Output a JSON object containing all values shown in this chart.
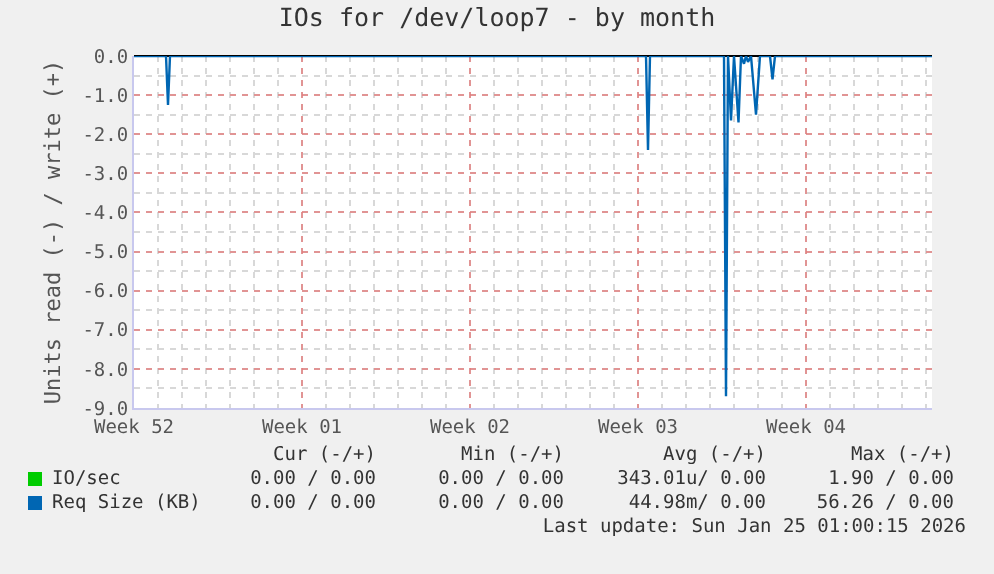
{
  "chart_data": {
    "type": "line",
    "title": "IOs for /dev/loop7 - by month",
    "ylabel": "Units read (-) / write (+)",
    "x": [
      "2025-12-22T00:00",
      "2025-12-23T08:00",
      "2025-12-23T10:00",
      "2025-12-23T12:00",
      "2026-01-12T08:00",
      "2026-01-12T10:00",
      "2026-01-12T12:00",
      "2026-01-15T14:00",
      "2026-01-15T16:00",
      "2026-01-15T18:00",
      "2026-01-15T21:00",
      "2026-01-16T00:00",
      "2026-01-16T04:30",
      "2026-01-16T07:00",
      "2026-01-16T10:00",
      "2026-01-16T12:00",
      "2026-01-16T14:00",
      "2026-01-16T17:00",
      "2026-01-16T22:00",
      "2026-01-17T02:00",
      "2026-01-17T12:00",
      "2026-01-17T14:30",
      "2026-01-17T17:00",
      "2026-01-24T06:00"
    ],
    "series": [
      {
        "name": "IO/sec",
        "color": "#00cc00",
        "values": [
          null,
          null,
          null,
          null,
          null,
          null,
          null,
          null,
          null,
          null,
          null,
          null,
          null,
          null,
          null,
          null,
          null,
          null,
          null,
          null,
          null,
          null,
          null,
          null
        ]
      },
      {
        "name": "Req Size (KB)",
        "color": "#0066b3",
        "values": [
          0,
          0,
          -1.25,
          0,
          0,
          -2.4,
          0,
          0,
          -8.7,
          0,
          -1.65,
          0,
          -1.7,
          0,
          -0.2,
          0,
          -0.15,
          0,
          -1.5,
          0,
          0,
          -0.6,
          0,
          0
        ]
      }
    ],
    "xlim": [
      "2025-12-22T00:00",
      "2026-01-24T06:00"
    ],
    "xticks": [
      {
        "value": "2025-12-22",
        "label": "Week 52"
      },
      {
        "value": "2025-12-29",
        "label": "Week 01"
      },
      {
        "value": "2026-01-05",
        "label": "Week 02"
      },
      {
        "value": "2026-01-12",
        "label": "Week 03"
      },
      {
        "value": "2026-01-19",
        "label": "Week 04"
      }
    ],
    "ylim": [
      -9,
      0
    ],
    "yticks": [
      {
        "value": 0,
        "label": "0.0"
      },
      {
        "value": -1,
        "label": "-1.0"
      },
      {
        "value": -2,
        "label": "-2.0"
      },
      {
        "value": -3,
        "label": "-3.0"
      },
      {
        "value": -4,
        "label": "-4.0"
      },
      {
        "value": -5,
        "label": "-5.0"
      },
      {
        "value": -6,
        "label": "-6.0"
      },
      {
        "value": -7,
        "label": "-7.0"
      },
      {
        "value": -8,
        "label": "-8.0"
      },
      {
        "value": -9,
        "label": "-9.0"
      }
    ],
    "grid": true,
    "legend": "bottom left",
    "marker": "none",
    "line_style": "solid",
    "annotations": [
      "Cur (-/+)",
      "Min (-/+)",
      "Avg (-/+)",
      "Max (-/+)",
      "0.00 / 0.00",
      "0.00 / 0.00",
      "343.01u/ 0.00",
      "1.90 / 0.00",
      "0.00 / 0.00",
      "0.00 / 0.00",
      "44.98m/ 0.00",
      "56.26 / 0.00",
      "Last update: Sun Jan 25 01:00:15 2026"
    ]
  }
}
